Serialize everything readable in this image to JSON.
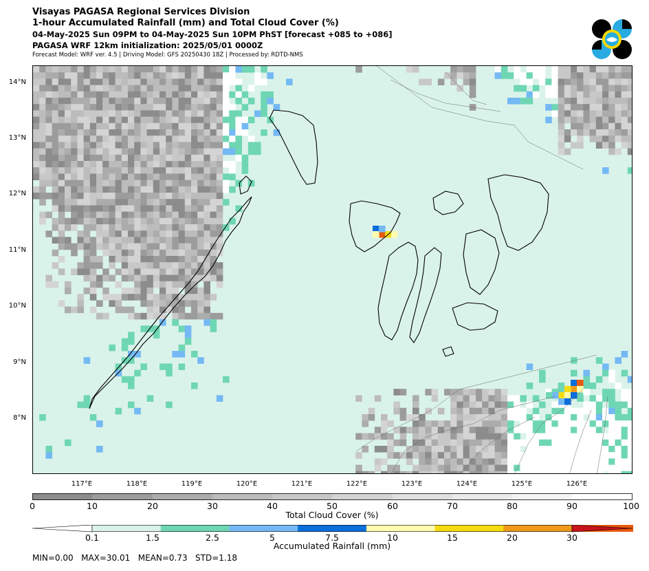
{
  "header": {
    "line1": "Visayas PAGASA Regional Services Division",
    "line2": "1-hour Accumulated Rainfall (mm) and Total Cloud Cover (%)",
    "line3": "04-May-2025 Sun 09PM to 04-May-2025 Sun 10PM PhST [forecast +085 to +086]",
    "line4": "PAGASA WRF 12km initialization: 2025/05/01 0000Z",
    "line5": "Forecast Model: WRF ver. 4.5 | Driving Model: GFS 20250430 18Z | Processed by: RDTD-NMS"
  },
  "logo": {
    "icon": "pagasa-logo-icon",
    "colors": [
      "#000000",
      "#29abe2",
      "#f5d800",
      "#ffffff"
    ]
  },
  "map": {
    "lat_labels": [
      "14°N",
      "13°N",
      "12°N",
      "11°N",
      "10°N",
      "9°N",
      "8°N"
    ],
    "lon_labels": [
      "117°E",
      "118°E",
      "119°E",
      "120°E",
      "121°E",
      "122°E",
      "123°E",
      "124°E",
      "125°E",
      "126°E"
    ]
  },
  "cloud_colorbar": {
    "title": "Total Cloud Cover (%)",
    "ticks": [
      "0",
      "10",
      "20",
      "30",
      "40",
      "50",
      "60",
      "70",
      "80",
      "90",
      "100"
    ],
    "colors": [
      "#8c8c8c",
      "#9c9c9c",
      "#acacac",
      "#bcbcbc",
      "#c8c8c8",
      "#d4d4d4",
      "#e0e0e0",
      "#eaeaea",
      "#f4f4f4",
      "#ffffff"
    ]
  },
  "rain_colorbar": {
    "title": "Accumulated Rainfall (mm)",
    "ticks": [
      "0.1",
      "1.5",
      "2.5",
      "5",
      "7.5",
      "10",
      "15",
      "20",
      "30"
    ],
    "colors": [
      "#daf3ea",
      "#6fd6b4",
      "#74b9f4",
      "#0a6fdc",
      "#fffcb0",
      "#f5dc10",
      "#f09a1c",
      "#e85a0c",
      "#c8141c"
    ]
  },
  "stats": {
    "line": "MIN=0.00   MAX=30.01   MEAN=0.73   STD=1.18"
  }
}
